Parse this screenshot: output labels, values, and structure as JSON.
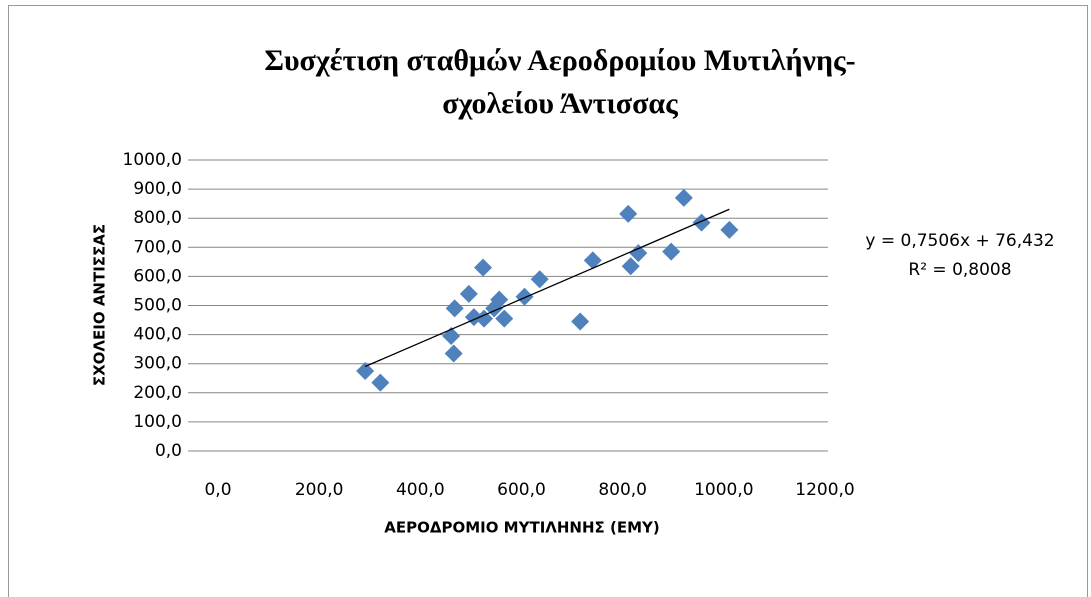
{
  "chart_data": {
    "type": "scatter",
    "title_lines": [
      "Συσχέτιση σταθμών Αεροδρομίου Μυτιλήνης-",
      "σχολείου Άντισσας"
    ],
    "x_label": "ΑΕΡΟΔΡΟΜΙΟ ΜΥΤΙΛΗΝΗΣ (ΕΜΥ)",
    "y_label": "ΣΧΟΛΕΙΟ ΑΝΤΙΣΣΑΣ",
    "color": "#4f81bd",
    "x": [
      285,
      315,
      455,
      460,
      462,
      490,
      500,
      518,
      520,
      540,
      550,
      560,
      600,
      630,
      710,
      735,
      805,
      810,
      825,
      890,
      915,
      950,
      1005
    ],
    "y": [
      275,
      235,
      395,
      335,
      490,
      540,
      460,
      630,
      455,
      490,
      520,
      455,
      530,
      590,
      445,
      655,
      815,
      635,
      680,
      685,
      870,
      785,
      760
    ],
    "xlim": [
      0,
      1200
    ],
    "xticks": [
      {
        "value": 0,
        "label": "0,0"
      },
      {
        "value": 200,
        "label": "200,0"
      },
      {
        "value": 400,
        "label": "400,0"
      },
      {
        "value": 600,
        "label": "600,0"
      },
      {
        "value": 800,
        "label": "800,0"
      },
      {
        "value": 1000,
        "label": "1000,0"
      },
      {
        "value": 1200,
        "label": "1200,0"
      }
    ],
    "ylim": [
      0,
      1000
    ],
    "yticks": [
      {
        "value": 0,
        "label": "0,0"
      },
      {
        "value": 100,
        "label": "100,0"
      },
      {
        "value": 200,
        "label": "200,0"
      },
      {
        "value": 300,
        "label": "300,0"
      },
      {
        "value": 400,
        "label": "400,0"
      },
      {
        "value": 500,
        "label": "500,0"
      },
      {
        "value": 600,
        "label": "600,0"
      },
      {
        "value": 700,
        "label": "700,0"
      },
      {
        "value": 800,
        "label": "800,0"
      },
      {
        "value": 900,
        "label": "900,0"
      },
      {
        "value": 1000,
        "label": "1000,0"
      }
    ],
    "grid": true,
    "trendline": {
      "slope": 0.7506,
      "intercept": 76.432,
      "equation": "y = 0,7506x + 76,432",
      "r2": "R² = 0,8008"
    }
  }
}
